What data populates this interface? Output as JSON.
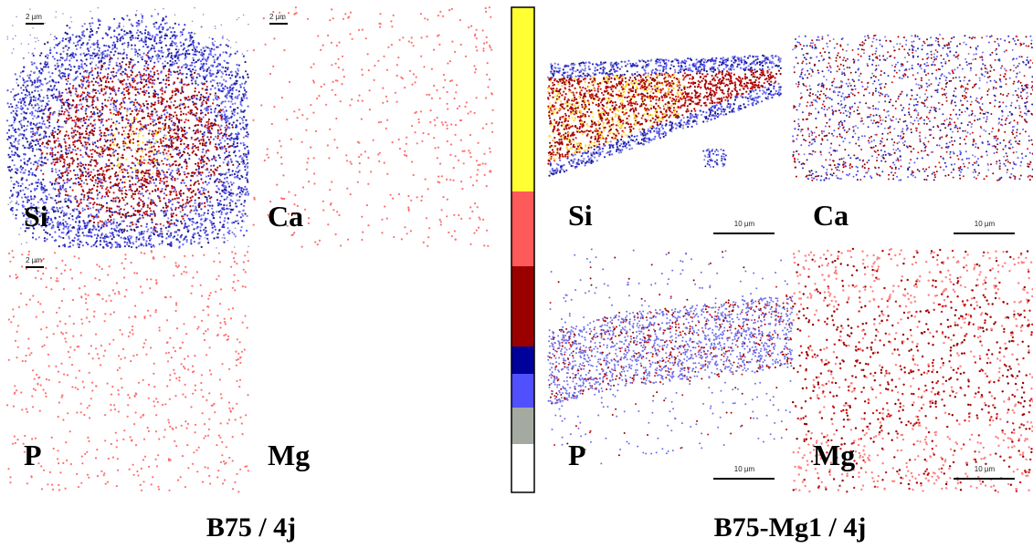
{
  "left": {
    "caption": "B75 / 4j",
    "maps": [
      {
        "element": "Si",
        "scale": "2 µm"
      },
      {
        "element": "Ca",
        "scale": "2 µm"
      },
      {
        "element": "P",
        "scale": "2 µm"
      },
      {
        "element": "Mg"
      }
    ]
  },
  "right": {
    "caption": "B75-Mg1 / 4j",
    "maps": [
      {
        "element": "Si",
        "scale": "10 µm"
      },
      {
        "element": "Ca",
        "scale": "10 µm"
      },
      {
        "element": "P",
        "scale": "10 µm"
      },
      {
        "element": "Mg",
        "scale": "10 µm"
      }
    ]
  }
}
